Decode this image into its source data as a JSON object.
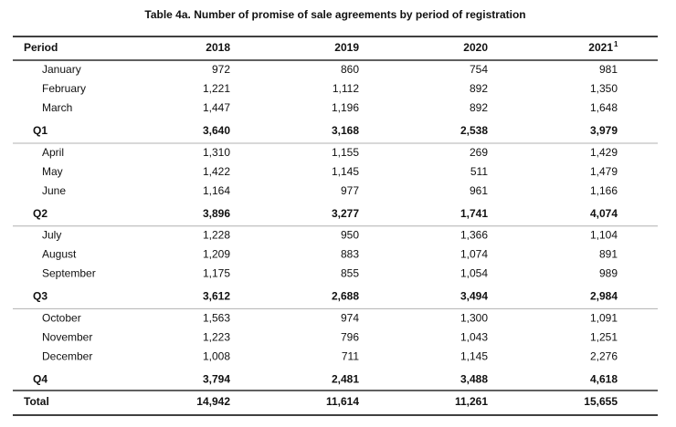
{
  "title": "Table 4a. Number of promise of sale agreements by period of registration",
  "header": {
    "period": "Period",
    "years": [
      "2018",
      "2019",
      "2020",
      "2021"
    ],
    "footnote_mark": "1"
  },
  "quarters": [
    {
      "months": [
        {
          "label": "January",
          "values": [
            "972",
            "860",
            "754",
            "981"
          ]
        },
        {
          "label": "February",
          "values": [
            "1,221",
            "1,112",
            "892",
            "1,350"
          ]
        },
        {
          "label": "March",
          "values": [
            "1,447",
            "1,196",
            "892",
            "1,648"
          ]
        }
      ],
      "total": {
        "label": "Q1",
        "values": [
          "3,640",
          "3,168",
          "2,538",
          "3,979"
        ]
      }
    },
    {
      "months": [
        {
          "label": "April",
          "values": [
            "1,310",
            "1,155",
            "269",
            "1,429"
          ]
        },
        {
          "label": "May",
          "values": [
            "1,422",
            "1,145",
            "511",
            "1,479"
          ]
        },
        {
          "label": "June",
          "values": [
            "1,164",
            "977",
            "961",
            "1,166"
          ]
        }
      ],
      "total": {
        "label": "Q2",
        "values": [
          "3,896",
          "3,277",
          "1,741",
          "4,074"
        ]
      }
    },
    {
      "months": [
        {
          "label": "July",
          "values": [
            "1,228",
            "950",
            "1,366",
            "1,104"
          ]
        },
        {
          "label": "August",
          "values": [
            "1,209",
            "883",
            "1,074",
            "891"
          ]
        },
        {
          "label": "September",
          "values": [
            "1,175",
            "855",
            "1,054",
            "989"
          ]
        }
      ],
      "total": {
        "label": "Q3",
        "values": [
          "3,612",
          "2,688",
          "3,494",
          "2,984"
        ]
      }
    },
    {
      "months": [
        {
          "label": "October",
          "values": [
            "1,563",
            "974",
            "1,300",
            "1,091"
          ]
        },
        {
          "label": "November",
          "values": [
            "1,223",
            "796",
            "1,043",
            "1,251"
          ]
        },
        {
          "label": "December",
          "values": [
            "1,008",
            "711",
            "1,145",
            "2,276"
          ]
        }
      ],
      "total": {
        "label": "Q4",
        "values": [
          "3,794",
          "2,481",
          "3,488",
          "4,618"
        ]
      }
    }
  ],
  "total": {
    "label": "Total",
    "values": [
      "14,942",
      "11,614",
      "11,261",
      "15,655"
    ]
  }
}
